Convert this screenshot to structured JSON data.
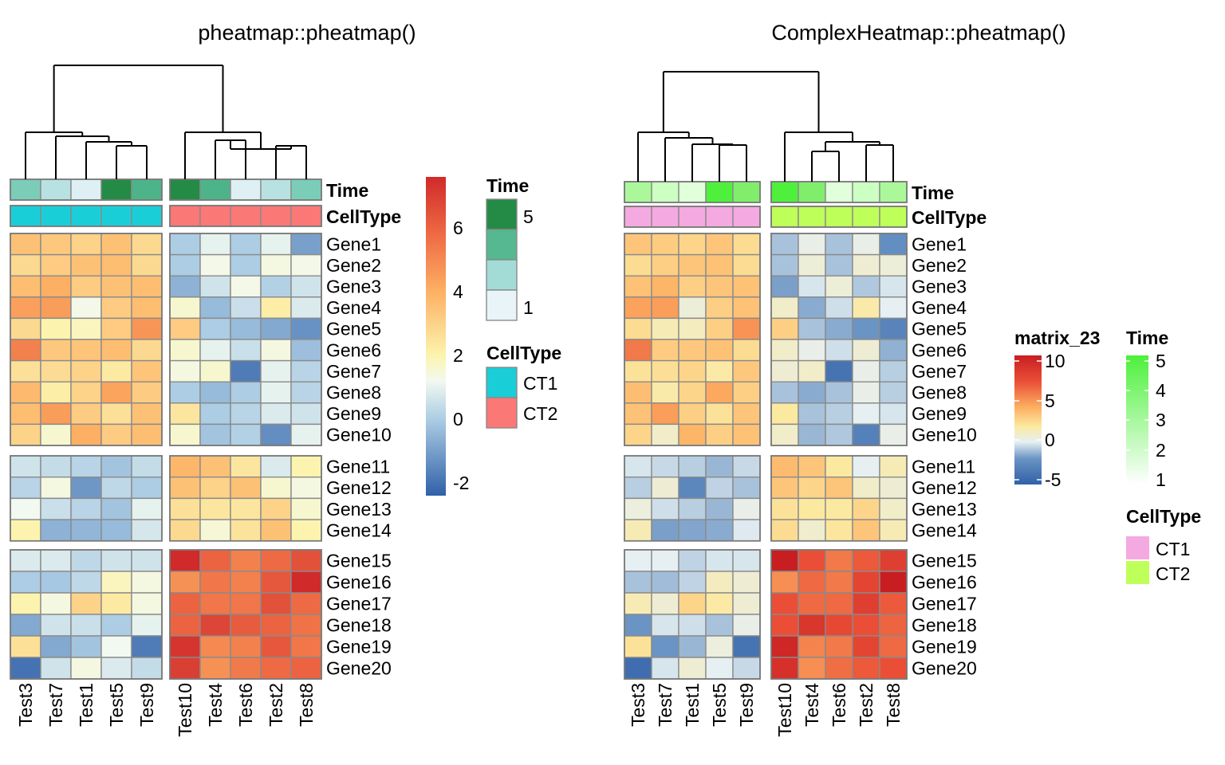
{
  "chart_data": [
    {
      "type": "heatmap",
      "title": "pheatmap::pheatmap()",
      "columns": [
        "Test3",
        "Test7",
        "Test1",
        "Test5",
        "Test9",
        "Test10",
        "Test4",
        "Test6",
        "Test2",
        "Test8"
      ],
      "column_split": [
        5,
        5
      ],
      "rows": [
        "Gene1",
        "Gene2",
        "Gene3",
        "Gene4",
        "Gene5",
        "Gene6",
        "Gene7",
        "Gene8",
        "Gene9",
        "Gene10",
        "Gene11",
        "Gene12",
        "Gene13",
        "Gene14",
        "Gene15",
        "Gene16",
        "Gene17",
        "Gene18",
        "Gene19",
        "Gene20"
      ],
      "row_split": [
        10,
        4,
        6
      ],
      "values": [
        [
          3.5,
          3.3,
          3.0,
          3.5,
          2.8,
          0,
          1.0,
          0,
          1.0,
          -1
        ],
        [
          2.8,
          3.2,
          3.5,
          3.6,
          2.8,
          0,
          1.3,
          0,
          1.4,
          1.3
        ],
        [
          3.6,
          4.0,
          3.2,
          3.5,
          3.6,
          -0.6,
          0.6,
          1.3,
          0.1,
          0.6
        ],
        [
          4.4,
          4.5,
          1.3,
          3.2,
          3.6,
          1.6,
          -0.4,
          0.5,
          2.2,
          0.8
        ],
        [
          2.8,
          2.0,
          1.8,
          3.2,
          4.7,
          3.2,
          0,
          -0.4,
          -0.8,
          -1.3
        ],
        [
          5.2,
          3.3,
          3.4,
          3.6,
          2.8,
          1.6,
          1.0,
          0.5,
          1.4,
          -0.3
        ],
        [
          2.6,
          2.7,
          3.0,
          2.3,
          3.4,
          1.4,
          1.6,
          -1.8,
          1.0,
          0.2
        ],
        [
          3.7,
          2.2,
          3.0,
          4.3,
          3.2,
          0,
          -0.4,
          0,
          1.0,
          0.2
        ],
        [
          3.6,
          4.5,
          3.2,
          2.6,
          3.5,
          2.4,
          0,
          0.2,
          0.8,
          0.6
        ],
        [
          3.0,
          1.6,
          4.0,
          3.2,
          3.6,
          1.6,
          -0.2,
          0.1,
          -1.4,
          1.0
        ],
        [
          0.6,
          0.4,
          0.2,
          -0.2,
          0.4,
          3.8,
          3.5,
          2.4,
          0.8,
          2.0
        ],
        [
          0.2,
          1.4,
          -1.2,
          0.3,
          0,
          3.5,
          3.0,
          3.5,
          1.6,
          1.4
        ],
        [
          1.2,
          0.5,
          0.2,
          -0.2,
          1.0,
          2.6,
          2.4,
          2.4,
          3.0,
          1.6
        ],
        [
          2.0,
          -0.6,
          -0.5,
          -0.4,
          0.7,
          2.8,
          1.5,
          2.5,
          3.5,
          2.0
        ],
        [
          0.8,
          0.8,
          0.3,
          0.6,
          0.6,
          7.6,
          6.0,
          5.2,
          5.8,
          6.5
        ],
        [
          0,
          -0.1,
          0.3,
          1.8,
          1.4,
          4.8,
          5.5,
          5.2,
          6.3,
          7.6
        ],
        [
          2.0,
          1.4,
          3.0,
          2.3,
          1.4,
          6.0,
          5.5,
          5.5,
          6.5,
          5.8
        ],
        [
          -0.8,
          0.6,
          0.5,
          0,
          1.0,
          6.0,
          6.8,
          6.2,
          6.0,
          5.6
        ],
        [
          2.6,
          -0.8,
          -0.2,
          1.2,
          -1.8,
          7.3,
          5.0,
          5.2,
          6.3,
          5.5
        ],
        [
          -2.0,
          0.6,
          1.4,
          0.8,
          0.4,
          7.0,
          4.8,
          5.4,
          5.8,
          6.0
        ]
      ],
      "col_annotation": {
        "Time": [
          2,
          1,
          0.6,
          4.8,
          3.6,
          4.8,
          3.6,
          0.6,
          1,
          2
        ],
        "CellType": [
          "CT1",
          "CT1",
          "CT1",
          "CT1",
          "CT1",
          "CT2",
          "CT2",
          "CT2",
          "CT2",
          "CT2"
        ]
      },
      "annotation_labels": [
        "Time",
        "CellType"
      ],
      "legends": {
        "heatmap": {
          "ticks": [
            6,
            4,
            2,
            0,
            -2
          ],
          "range": [
            -2.4,
            7.6
          ]
        },
        "time": {
          "title": "Time",
          "labels": [
            "5",
            "1"
          ],
          "colors": [
            "#238B45",
            "#55B891",
            "#A3DBD6",
            "#E8F4F8"
          ]
        },
        "celltype": {
          "title": "CellType",
          "labels": [
            "CT1",
            "CT2"
          ],
          "colors": [
            "#1ACED8",
            "#FA7876"
          ]
        }
      }
    },
    {
      "type": "heatmap",
      "title": "ComplexHeatmap::pheatmap()",
      "columns": [
        "Test3",
        "Test7",
        "Test1",
        "Test5",
        "Test9",
        "Test10",
        "Test4",
        "Test6",
        "Test2",
        "Test8"
      ],
      "rows": [
        "Gene1",
        "Gene2",
        "Gene3",
        "Gene4",
        "Gene5",
        "Gene6",
        "Gene7",
        "Gene8",
        "Gene9",
        "Gene10",
        "Gene11",
        "Gene12",
        "Gene13",
        "Gene14",
        "Gene15",
        "Gene16",
        "Gene17",
        "Gene18",
        "Gene19",
        "Gene20"
      ],
      "col_annotation": {
        "Time": [
          2,
          1,
          0.6,
          4.8,
          3.6,
          4.8,
          3.6,
          0.6,
          1,
          2
        ],
        "CellType": [
          "CT1",
          "CT1",
          "CT1",
          "CT1",
          "CT1",
          "CT2",
          "CT2",
          "CT2",
          "CT2",
          "CT2"
        ]
      },
      "annotation_labels": [
        "Time",
        "CellType"
      ],
      "legends": {
        "heatmap": {
          "title": "matrix_23",
          "ticks": [
            "10",
            "5",
            "0",
            "-5"
          ]
        },
        "time": {
          "title": "Time",
          "ticks": [
            "5",
            "4",
            "3",
            "2",
            "1"
          ]
        },
        "celltype": {
          "title": "CellType",
          "labels": [
            "CT1",
            "CT2"
          ],
          "colors": [
            "#F5A9E1",
            "#BFFF5A"
          ]
        }
      }
    }
  ]
}
